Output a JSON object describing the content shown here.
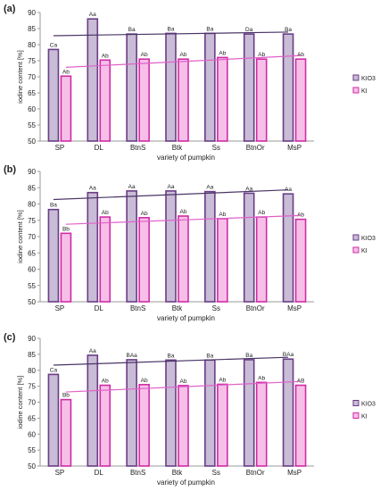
{
  "colors": {
    "kio3_fill": "#c9bcd6",
    "kio3_stroke": "#6a3d86",
    "ki_fill": "#f7bfe8",
    "ki_stroke": "#d02aa6",
    "kio3_trend": "#4a3566",
    "ki_trend": "#e060c8",
    "axis": "#9a9a9a",
    "text": "#222222"
  },
  "chart_data": [
    {
      "panel_label": "(a)",
      "type": "bar",
      "xlabel": "variety of pumpkin",
      "ylabel": "iodine content [%]",
      "ylim": [
        50,
        90
      ],
      "yticks": [
        50,
        55,
        60,
        65,
        70,
        75,
        80,
        85,
        90
      ],
      "grid": false,
      "legend_position": "right",
      "categories": [
        "SP",
        "DL",
        "BtnS",
        "Btk",
        "Ss",
        "BtnOr",
        "MsP"
      ],
      "series": [
        {
          "name": "KIO3",
          "values": [
            78.5,
            88,
            83.3,
            83.5,
            83.5,
            83.3,
            83.3
          ],
          "labels": [
            "Ca",
            "Aa",
            "Ba",
            "Ba",
            "Ba",
            "Da",
            "Ba"
          ]
        },
        {
          "name": "KI",
          "values": [
            70.2,
            75.2,
            75.5,
            75.5,
            76,
            75.5,
            75.5
          ],
          "labels": [
            "Ab",
            "Ab",
            "Ab",
            "Ab",
            "Ab",
            "Ab",
            "Ab"
          ]
        }
      ]
    },
    {
      "panel_label": "(b)",
      "type": "bar",
      "xlabel": "variety of pumpkin",
      "ylabel": "iodine content [%]",
      "ylim": [
        50,
        90
      ],
      "yticks": [
        50,
        55,
        60,
        65,
        70,
        75,
        80,
        85,
        90
      ],
      "grid": false,
      "legend_position": "right",
      "categories": [
        "SP",
        "DL",
        "BtnS",
        "Btk",
        "Ss",
        "BtnOr",
        "MsP"
      ],
      "series": [
        {
          "name": "KIO3",
          "values": [
            78.3,
            83.5,
            84,
            84,
            83.8,
            83.3,
            83.1
          ],
          "labels": [
            "Ba",
            "Aa",
            "Aa",
            "Aa",
            "Aa",
            "Aa",
            "Aa"
          ]
        },
        {
          "name": "KI",
          "values": [
            71,
            76,
            75.8,
            76.3,
            75.5,
            76,
            75.3
          ],
          "labels": [
            "Bb",
            "Ab",
            "Ab",
            "Ab",
            "Ab",
            "Ab",
            "Ab"
          ]
        }
      ]
    },
    {
      "panel_label": "(c)",
      "type": "bar",
      "xlabel": "variety of pumpkin",
      "ylabel": "iodine content [%]",
      "ylim": [
        50,
        90
      ],
      "yticks": [
        50,
        55,
        60,
        65,
        70,
        75,
        80,
        85,
        90
      ],
      "grid": false,
      "legend_position": "right",
      "categories": [
        "SP",
        "DL",
        "BtnS",
        "Btk",
        "Ss",
        "BtnOr",
        "MsP"
      ],
      "series": [
        {
          "name": "KIO3",
          "values": [
            78.7,
            84.7,
            83.3,
            83.2,
            83.2,
            83.3,
            83.5
          ],
          "labels": [
            "Ca",
            "Aa",
            "BAa",
            "Ba",
            "Ba",
            "Ba",
            "BAa"
          ]
        },
        {
          "name": "KI",
          "values": [
            70.8,
            75.3,
            75.5,
            75.2,
            75.6,
            76.2,
            75.3
          ],
          "labels": [
            "Bb",
            "Ab",
            "Ab",
            "Ab",
            "Ab",
            "Ab",
            "AB"
          ]
        }
      ]
    }
  ]
}
